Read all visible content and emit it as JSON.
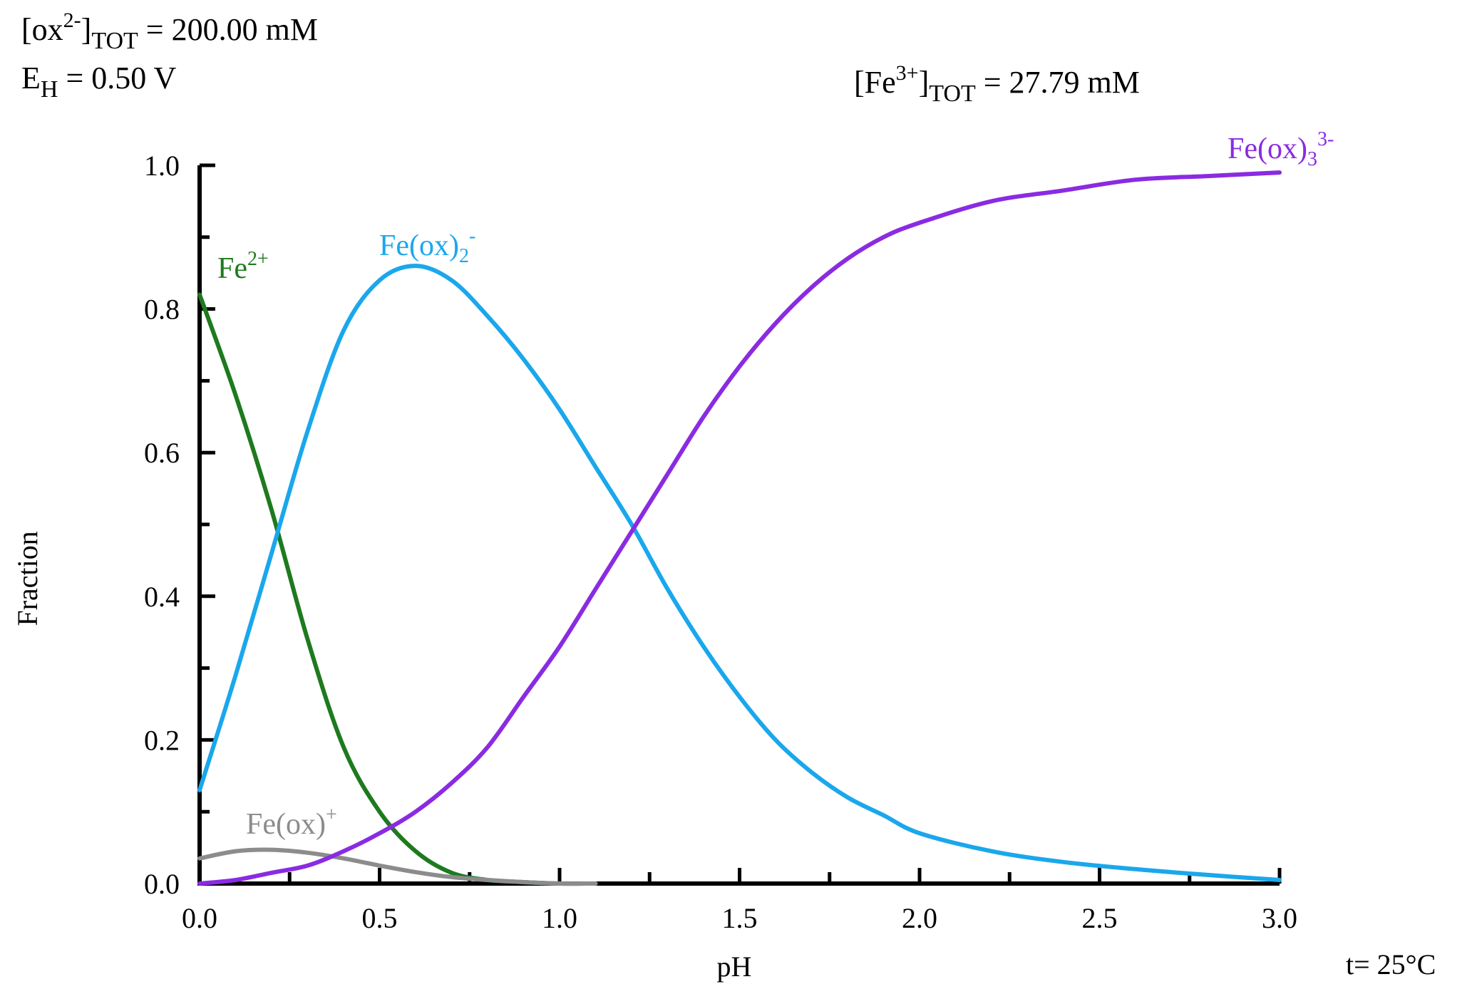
{
  "header": {
    "ox_label": "[ox",
    "ox_charge": "2-",
    "ox_bracket": "]",
    "ox_sub": "TOT",
    "ox_value": " =  200.00 mM",
    "eh_label": "E",
    "eh_sub": "H",
    "eh_value": " =   0.50 V",
    "fe_label": "[Fe",
    "fe_charge": "3+",
    "fe_bracket": "]",
    "fe_sub": "TOT",
    "fe_value": " =   27.79 mM"
  },
  "footer": {
    "temperature": "t= 25°C"
  },
  "chart_data": {
    "type": "line",
    "xlabel": "pH",
    "ylabel": "Fraction",
    "xlim": [
      0,
      3
    ],
    "ylim": [
      0,
      1
    ],
    "x_ticks": [
      0.0,
      0.5,
      1.0,
      1.5,
      2.0,
      2.5,
      3.0
    ],
    "x_tick_labels": [
      "0.0",
      "0.5",
      "1.0",
      "1.5",
      "2.0",
      "2.5",
      "3.0"
    ],
    "y_ticks": [
      0.0,
      0.2,
      0.4,
      0.6,
      0.8,
      1.0
    ],
    "y_tick_labels": [
      "0.0",
      "0.2",
      "0.4",
      "0.6",
      "0.8",
      "1.0"
    ],
    "grid": false,
    "series": [
      {
        "name": "Fe2+",
        "label_base": "Fe",
        "label_sup": "2+",
        "label_sub": "",
        "color": "#1e7a1e",
        "x": [
          0.0,
          0.1,
          0.2,
          0.3,
          0.4,
          0.5,
          0.6,
          0.7,
          0.8,
          0.9,
          1.0,
          1.1
        ],
        "y": [
          0.82,
          0.68,
          0.52,
          0.34,
          0.19,
          0.1,
          0.045,
          0.015,
          0.005,
          0.002,
          0.0,
          0.0
        ]
      },
      {
        "name": "Fe(ox)+",
        "label_base": "Fe(ox)",
        "label_sup": "+",
        "label_sub": "",
        "color": "#8c8c8c",
        "x": [
          0.0,
          0.1,
          0.2,
          0.3,
          0.4,
          0.5,
          0.6,
          0.7,
          0.8,
          0.9,
          1.0,
          1.1
        ],
        "y": [
          0.035,
          0.045,
          0.047,
          0.043,
          0.035,
          0.025,
          0.016,
          0.009,
          0.005,
          0.002,
          0.0,
          0.0
        ]
      },
      {
        "name": "Fe(ox)2-",
        "label_base": "Fe(ox)",
        "label_sup": "-",
        "label_sub": "2",
        "color": "#1aa7ec",
        "x": [
          0.0,
          0.1,
          0.2,
          0.3,
          0.4,
          0.5,
          0.6,
          0.7,
          0.8,
          0.9,
          1.0,
          1.1,
          1.2,
          1.3,
          1.4,
          1.5,
          1.6,
          1.7,
          1.8,
          1.9,
          2.0,
          2.2,
          2.4,
          2.6,
          2.8,
          3.0
        ],
        "y": [
          0.13,
          0.29,
          0.46,
          0.63,
          0.77,
          0.84,
          0.86,
          0.84,
          0.79,
          0.73,
          0.66,
          0.58,
          0.5,
          0.41,
          0.33,
          0.26,
          0.2,
          0.155,
          0.12,
          0.095,
          0.07,
          0.045,
          0.03,
          0.02,
          0.012,
          0.005
        ]
      },
      {
        "name": "Fe(ox)3 3-",
        "label_base": "Fe(ox)",
        "label_sup": "3-",
        "label_sub": "3",
        "color": "#8a2be2",
        "x": [
          0.0,
          0.1,
          0.2,
          0.3,
          0.4,
          0.5,
          0.6,
          0.7,
          0.8,
          0.9,
          1.0,
          1.1,
          1.2,
          1.3,
          1.4,
          1.5,
          1.6,
          1.7,
          1.8,
          1.9,
          2.0,
          2.2,
          2.4,
          2.6,
          2.8,
          3.0
        ],
        "y": [
          0.0,
          0.005,
          0.015,
          0.025,
          0.045,
          0.07,
          0.1,
          0.14,
          0.19,
          0.26,
          0.33,
          0.41,
          0.49,
          0.57,
          0.65,
          0.72,
          0.78,
          0.83,
          0.87,
          0.9,
          0.92,
          0.95,
          0.965,
          0.98,
          0.985,
          0.99
        ]
      }
    ]
  }
}
